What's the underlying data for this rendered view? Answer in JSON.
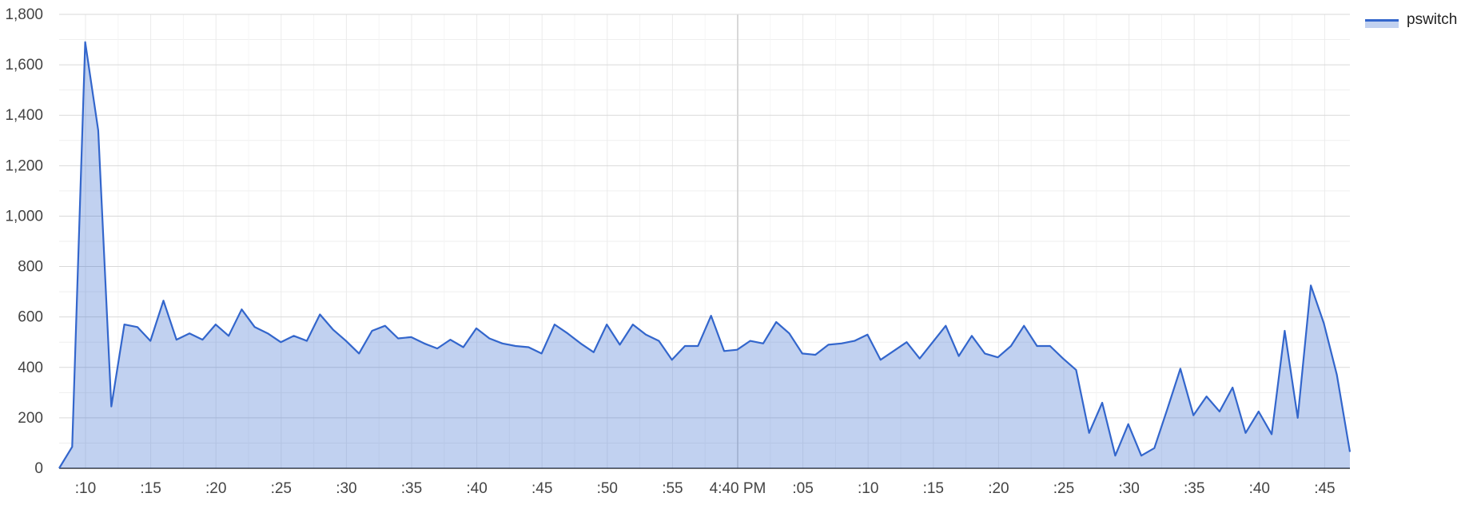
{
  "chart_data": {
    "type": "area",
    "series": [
      {
        "name": "pswitch",
        "color": "#3366cc",
        "values": [
          0,
          85,
          1690,
          1340,
          245,
          570,
          560,
          505,
          665,
          510,
          535,
          510,
          570,
          525,
          630,
          560,
          535,
          500,
          525,
          505,
          610,
          550,
          505,
          455,
          545,
          565,
          515,
          520,
          495,
          475,
          510,
          480,
          555,
          515,
          495,
          485,
          480,
          455,
          570,
          535,
          495,
          460,
          570,
          490,
          570,
          530,
          505,
          430,
          485,
          485,
          605,
          465,
          470,
          505,
          495,
          580,
          535,
          455,
          450,
          490,
          495,
          505,
          530,
          430,
          465,
          500,
          435,
          500,
          565,
          445,
          525,
          455,
          440,
          485,
          565,
          485,
          485,
          435,
          390,
          140,
          260,
          50,
          175,
          50,
          80,
          235,
          395,
          210,
          285,
          225,
          320,
          140,
          225,
          135,
          545,
          200,
          725,
          575,
          370,
          65
        ]
      }
    ],
    "x_tick_labels": [
      ":10",
      ":15",
      ":20",
      ":25",
      ":30",
      ":35",
      ":40",
      ":45",
      ":50",
      ":55",
      "4:40 PM",
      ":05",
      ":10",
      ":15",
      ":20",
      ":25",
      ":30",
      ":35",
      ":40",
      ":45"
    ],
    "y_tick_labels": [
      "0",
      "200",
      "400",
      "600",
      "800",
      "1,000",
      "1,200",
      "1,400",
      "1,600",
      "1,800"
    ],
    "ylim": [
      0,
      1800
    ],
    "y_gridlines": [
      0,
      200,
      400,
      600,
      800,
      1000,
      1200,
      1400,
      1600,
      1800
    ],
    "grid": true,
    "legend_position": "top-right",
    "fill_opacity": 0.3
  }
}
